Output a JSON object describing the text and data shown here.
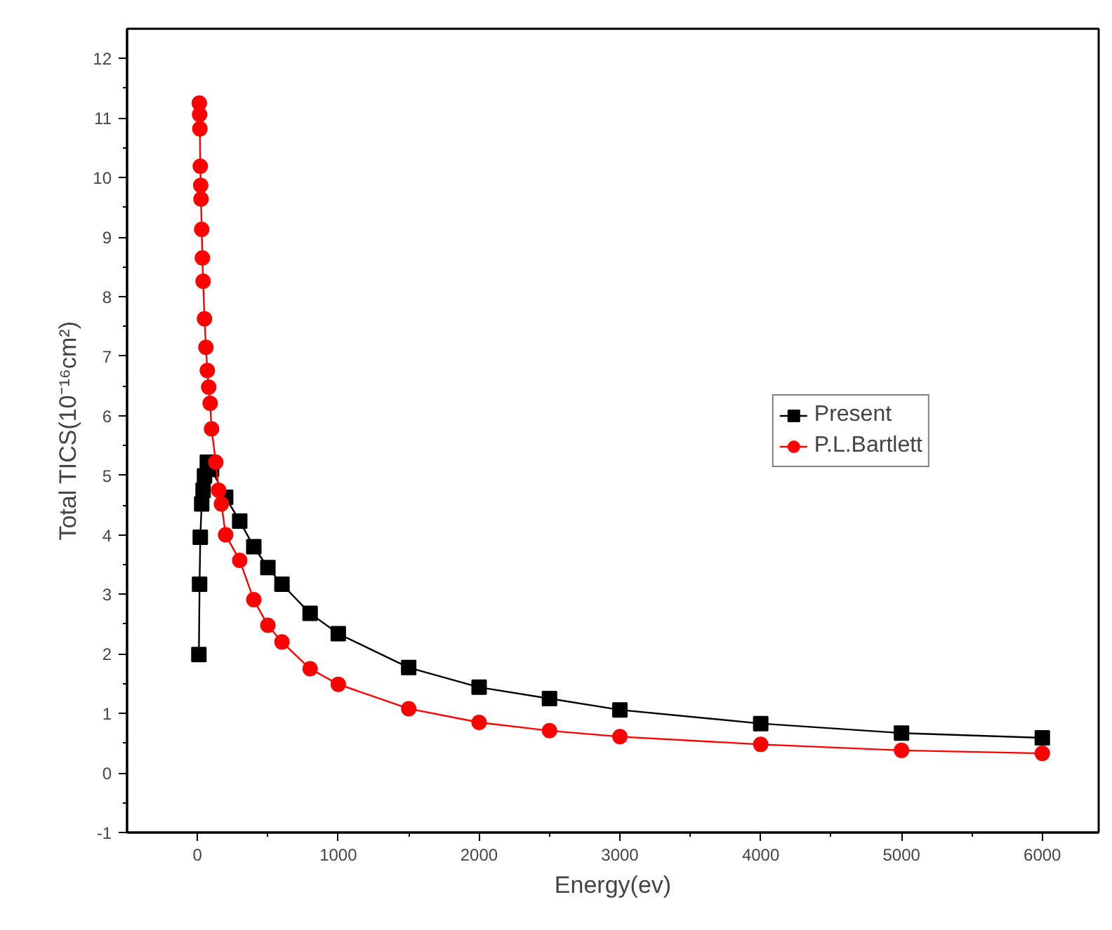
{
  "chart_data": {
    "type": "line",
    "xlabel": "Energy(ev)",
    "ylabel": "Total TICS(10⁻¹⁶cm²)",
    "xlim": [
      -500,
      6400
    ],
    "ylim": [
      -1,
      12.5
    ],
    "xticks": [
      0,
      1000,
      2000,
      3000,
      4000,
      5000,
      6000
    ],
    "yticks": [
      -1,
      0,
      1,
      2,
      3,
      4,
      5,
      6,
      7,
      8,
      9,
      10,
      11,
      12
    ],
    "grid": false,
    "legend": "right",
    "series": [
      {
        "name": "Present",
        "color": "#000000",
        "marker": "square",
        "x": [
          10,
          15,
          20,
          30,
          40,
          50,
          70,
          100,
          200,
          300,
          400,
          500,
          600,
          800,
          1000,
          1500,
          2000,
          2500,
          3000,
          4000,
          5000,
          6000
        ],
        "values": [
          1.99,
          3.17,
          3.96,
          4.52,
          4.75,
          4.99,
          5.22,
          5.1,
          4.63,
          4.23,
          3.8,
          3.45,
          3.17,
          2.68,
          2.34,
          1.77,
          1.44,
          1.25,
          1.06,
          0.83,
          0.67,
          0.59
        ]
      },
      {
        "name": "P.L.Bartlett",
        "color": "#ff0000",
        "marker": "circle",
        "x": [
          13,
          15,
          17,
          20,
          23,
          25,
          30,
          35,
          40,
          50,
          60,
          70,
          80,
          90,
          100,
          130,
          150,
          170,
          200,
          300,
          400,
          500,
          600,
          800,
          1000,
          1500,
          2000,
          2500,
          3000,
          4000,
          5000,
          6000
        ],
        "values": [
          11.25,
          11.06,
          10.82,
          10.19,
          9.87,
          9.64,
          9.13,
          8.65,
          8.26,
          7.63,
          7.15,
          6.76,
          6.48,
          6.21,
          5.78,
          5.22,
          4.75,
          4.52,
          4.0,
          3.57,
          2.91,
          2.48,
          2.2,
          1.75,
          1.49,
          1.08,
          0.85,
          0.71,
          0.61,
          0.48,
          0.38,
          0.33
        ]
      }
    ]
  }
}
